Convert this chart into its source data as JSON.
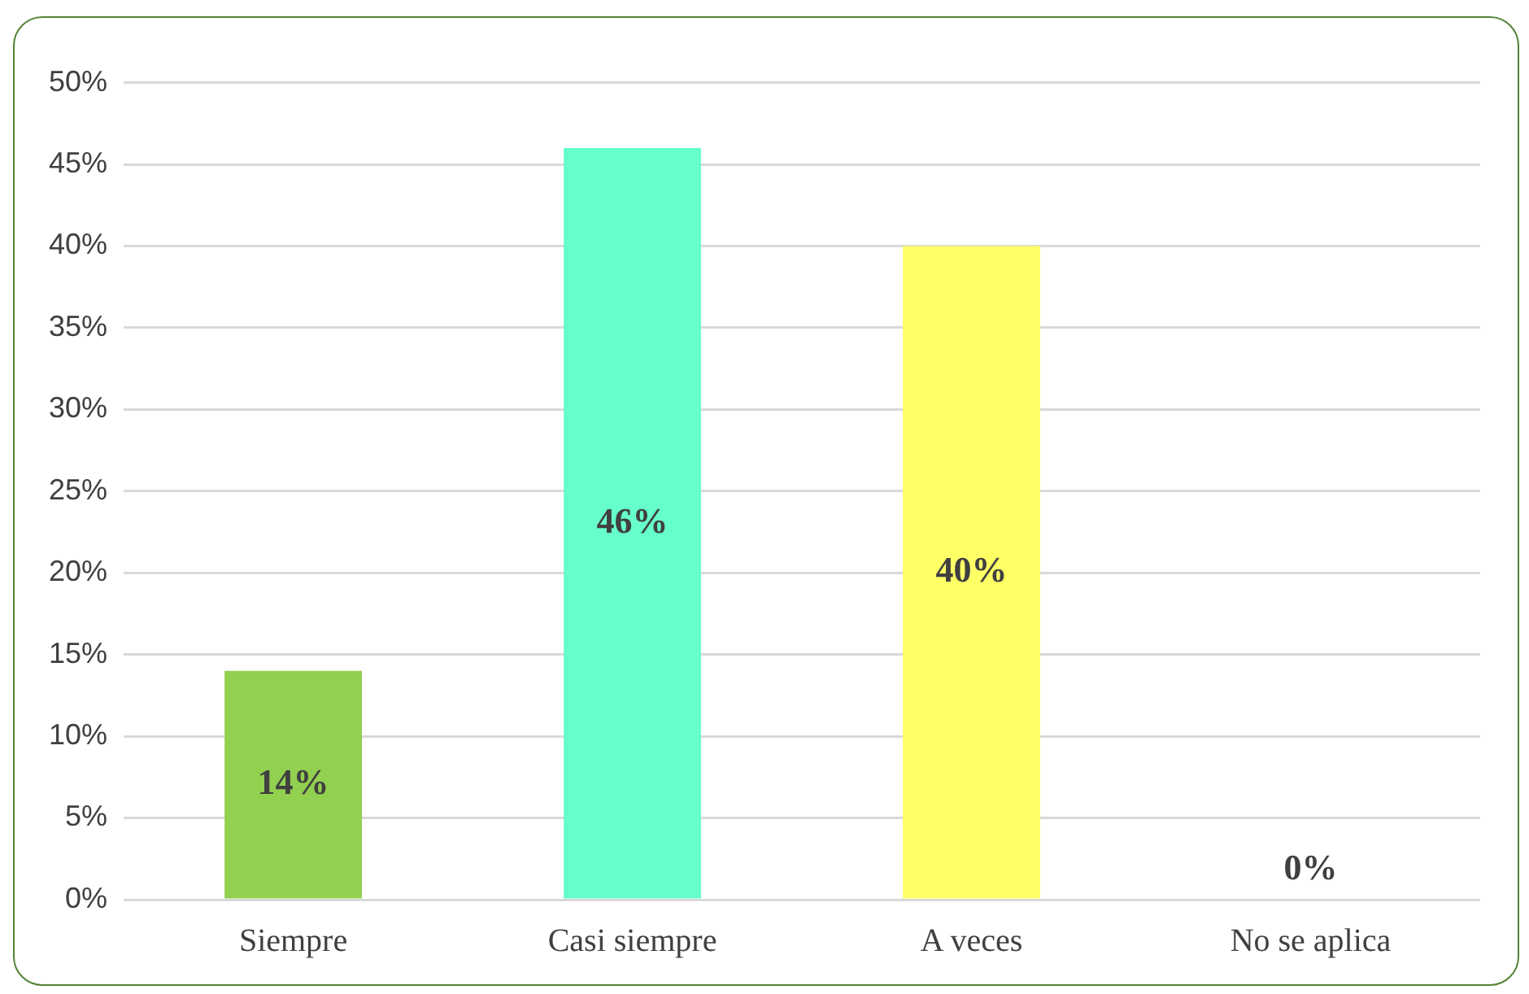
{
  "chart_data": {
    "type": "bar",
    "categories": [
      "Siempre",
      "Casi siempre",
      "A veces",
      "No se aplica"
    ],
    "values": [
      14,
      46,
      40,
      0
    ],
    "colors": [
      "#92d050",
      "#66ffcc",
      "#ffff66",
      "#2f5597"
    ],
    "value_labels": [
      "14%",
      "46%",
      "40%",
      "0%"
    ],
    "ylim": [
      0,
      50
    ],
    "yticks": [
      {
        "value": 0,
        "label": "0%"
      },
      {
        "value": 5,
        "label": "5%"
      },
      {
        "value": 10,
        "label": "10%"
      },
      {
        "value": 15,
        "label": "15%"
      },
      {
        "value": 20,
        "label": "20%"
      },
      {
        "value": 25,
        "label": "25%"
      },
      {
        "value": 30,
        "label": "30%"
      },
      {
        "value": 35,
        "label": "35%"
      },
      {
        "value": 40,
        "label": "40%"
      },
      {
        "value": 45,
        "label": "45%"
      },
      {
        "value": 50,
        "label": "50%"
      }
    ],
    "grid": "y"
  }
}
